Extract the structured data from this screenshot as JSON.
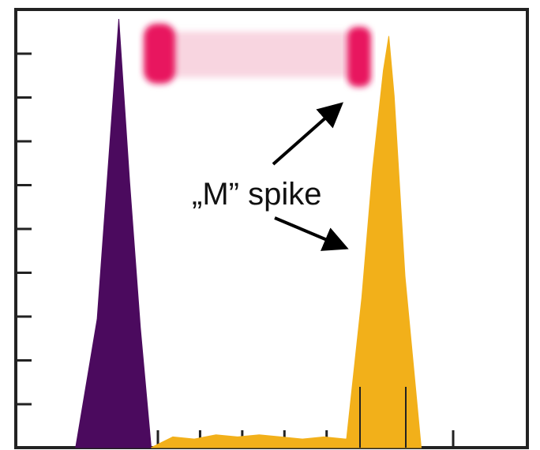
{
  "chart_data": {
    "type": "area",
    "title": "",
    "xlabel": "",
    "ylabel": "",
    "grid": false,
    "legend": "none",
    "y_ticks": 9,
    "x_ticks": 8,
    "series": [
      {
        "color": "#4b0a5e",
        "x": [
          0.14,
          0.18,
          0.2,
          0.22,
          0.24,
          0.26,
          0.28
        ],
        "y": [
          0.0,
          0.3,
          0.65,
          1.0,
          0.62,
          0.28,
          0.0
        ]
      },
      {
        "color": "#f2b01a",
        "x": [
          0.28,
          0.32,
          0.36,
          0.4,
          0.44,
          0.48,
          0.52,
          0.56,
          0.6,
          0.64,
          0.68,
          0.72,
          0.76
        ],
        "y": [
          0.0,
          0.025,
          0.02,
          0.03,
          0.025,
          0.03,
          0.025,
          0.02,
          0.025,
          0.02,
          0.03,
          0.015,
          0.0
        ]
      },
      {
        "color": "#f2b01a",
        "x": [
          0.64,
          0.67,
          0.69,
          0.71,
          0.72,
          0.73,
          0.75,
          0.78
        ],
        "y": [
          0.0,
          0.35,
          0.65,
          0.88,
          0.96,
          0.82,
          0.4,
          0.0
        ]
      }
    ],
    "annotations": [
      {
        "text": "„M” spike"
      }
    ]
  },
  "colors": {
    "gel_band": "#e8125f",
    "gel_smear": "#f3b3c8",
    "axis": "#222222",
    "arrow": "#000000"
  }
}
